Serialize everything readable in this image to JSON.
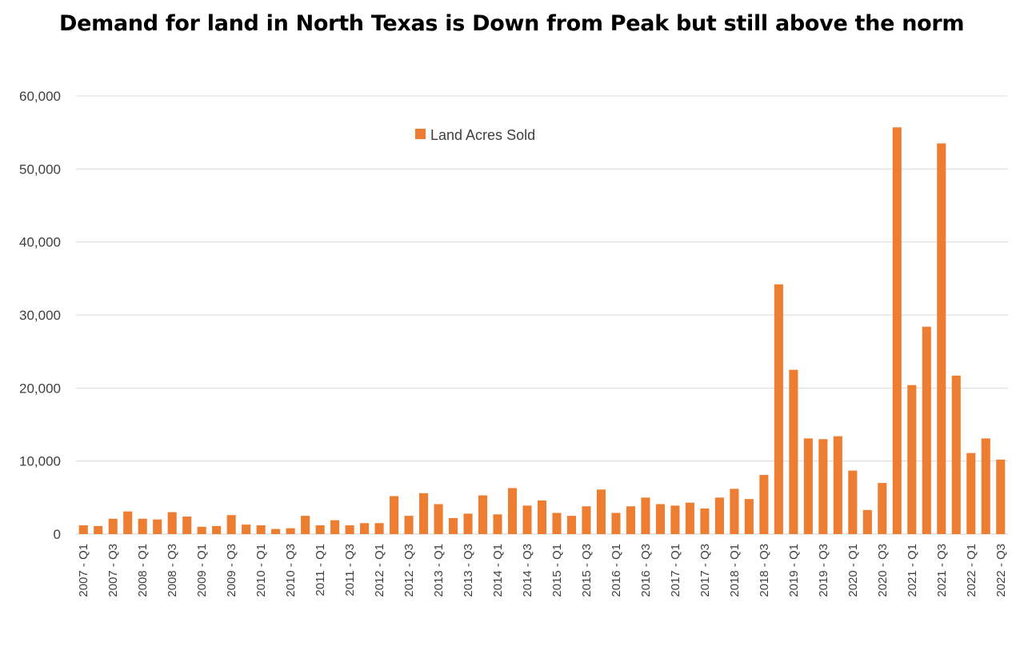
{
  "chart_data": {
    "type": "bar",
    "title": "Demand for land in North Texas is Down from Peak but still above the norm",
    "xlabel": "",
    "ylabel": "",
    "ylim": [
      0,
      60000
    ],
    "yticks": [
      "0",
      "10,000",
      "20,000",
      "30,000",
      "40,000",
      "50,000",
      "60,000"
    ],
    "legend": {
      "position": "top-center",
      "entries": [
        "Land Acres Sold"
      ]
    },
    "bar_color": "#ED7D31",
    "grid": true,
    "categories": [
      "2007 - Q1",
      "2007 - Q2",
      "2007 - Q3",
      "2007 - Q4",
      "2008 - Q1",
      "2008 - Q2",
      "2008 - Q3",
      "2008 - Q4",
      "2009 - Q1",
      "2009 - Q2",
      "2009 - Q3",
      "2009 - Q4",
      "2010 - Q1",
      "2010 - Q2",
      "2010 - Q3",
      "2010 - Q4",
      "2011 - Q1",
      "2011 - Q2",
      "2011 - Q3",
      "2011 - Q4",
      "2012 - Q1",
      "2012 - Q2",
      "2012 - Q3",
      "2012 - Q4",
      "2013 - Q1",
      "2013 - Q2",
      "2013 - Q3",
      "2013 - Q4",
      "2014 - Q1",
      "2014 - Q2",
      "2014 - Q3",
      "2014 - Q4",
      "2015 - Q1",
      "2015 - Q2",
      "2015 - Q3",
      "2015 - Q4",
      "2016 - Q1",
      "2016 - Q2",
      "2016 - Q3",
      "2016 - Q4",
      "2017 - Q1",
      "2017 - Q2",
      "2017 - Q3",
      "2017 - Q4",
      "2018 - Q1",
      "2018 - Q2",
      "2018 - Q3",
      "2018 - Q4",
      "2019 - Q1",
      "2019 - Q2",
      "2019 - Q3",
      "2019 - Q4",
      "2020 - Q1",
      "2020 - Q2",
      "2020 - Q3",
      "2020 - Q4",
      "2021 - Q1",
      "2021 - Q2",
      "2021 - Q3",
      "2021 - Q4",
      "2022 - Q1",
      "2022 - Q2",
      "2022 - Q3"
    ],
    "visible_tick_labels": [
      "2007 - Q1",
      "2007 - Q3",
      "2008 - Q1",
      "2008 - Q3",
      "2009 - Q1",
      "2009 - Q3",
      "2010 - Q1",
      "2010 - Q3",
      "2011 - Q1",
      "2011 - Q3",
      "2012 - Q1",
      "2012 - Q3",
      "2013 - Q1",
      "2013 - Q3",
      "2014 - Q1",
      "2014 - Q3",
      "2015 - Q1",
      "2015 - Q3",
      "2016 - Q1",
      "2016 - Q3",
      "2017 - Q1",
      "2017 - Q3",
      "2018 - Q1",
      "2018 - Q3",
      "2019 - Q1",
      "2019 - Q3",
      "2020 - Q1",
      "2020 - Q3",
      "2021 - Q1",
      "2021 - Q3",
      "2022 - Q1",
      "2022 - Q3"
    ],
    "series": [
      {
        "name": "Land Acres Sold",
        "values": [
          1200,
          1100,
          2100,
          3100,
          2100,
          2000,
          3000,
          2400,
          1000,
          1100,
          2600,
          1300,
          1200,
          700,
          800,
          2500,
          1200,
          1900,
          1200,
          1500,
          1500,
          5200,
          2500,
          5600,
          4100,
          2200,
          2800,
          5300,
          2700,
          6300,
          3900,
          4600,
          2900,
          2500,
          3800,
          6100,
          2900,
          3800,
          5000,
          4100,
          3900,
          4300,
          3500,
          5000,
          6200,
          4800,
          8100,
          34200,
          22500,
          13100,
          13000,
          13400,
          8700,
          3300,
          7000,
          55700,
          20400,
          28400,
          53500,
          21700,
          11100,
          13100,
          10200
        ]
      }
    ]
  }
}
